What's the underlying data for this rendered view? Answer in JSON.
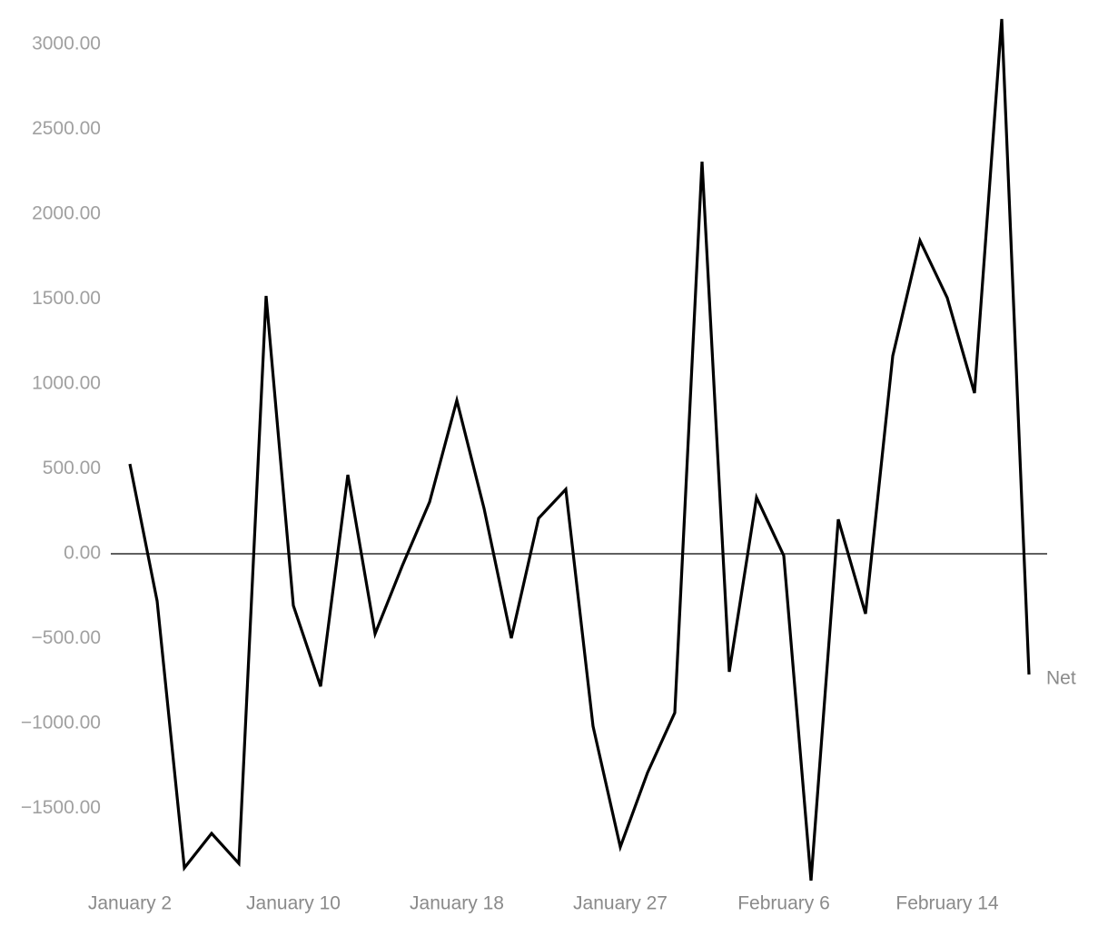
{
  "chart_data": {
    "type": "line",
    "categories": [
      "January 2",
      null,
      null,
      null,
      null,
      null,
      "January 10",
      null,
      null,
      null,
      null,
      null,
      "January 18",
      null,
      null,
      null,
      null,
      null,
      "January 27",
      null,
      null,
      null,
      null,
      null,
      "February 6",
      null,
      null,
      null,
      null,
      null,
      "February 14",
      null,
      null,
      null
    ],
    "series": [
      {
        "name": "Net",
        "color": "#000000",
        "values": [
          529,
          -278,
          -1850,
          -1647,
          -1824,
          1519,
          -305,
          -781,
          465,
          -471,
          -70,
          305,
          904,
          267,
          -497,
          209,
          380,
          -1016,
          -1727,
          -1289,
          -936,
          2310,
          -695,
          332,
          -11,
          -1925,
          203,
          -353,
          1166,
          1845,
          1508,
          947,
          3150,
          -711
        ]
      }
    ],
    "ylim": [
      -1925,
      3150
    ],
    "yticks": [
      {
        "value": -1500,
        "label": "−1500.00"
      },
      {
        "value": -1000,
        "label": "−1000.00"
      },
      {
        "value": -500,
        "label": "−500.00"
      },
      {
        "value": 0,
        "label": "0.00"
      },
      {
        "value": 500,
        "label": "500.00"
      },
      {
        "value": 1000,
        "label": "1000.00"
      },
      {
        "value": 1500,
        "label": "1500.00"
      },
      {
        "value": 2000,
        "label": "2000.00"
      },
      {
        "value": 2500,
        "label": "2500.00"
      },
      {
        "value": 3000,
        "label": "3000.00"
      }
    ],
    "zero_line": true
  }
}
